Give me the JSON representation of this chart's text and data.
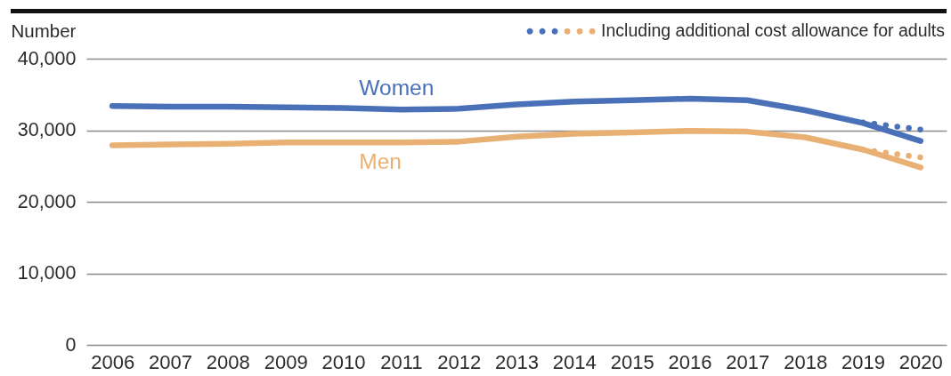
{
  "chart_data": {
    "type": "line",
    "ylabel": "Number",
    "categories": [
      "2006",
      "2007",
      "2008",
      "2009",
      "2010",
      "2011",
      "2012",
      "2013",
      "2014",
      "2015",
      "2016",
      "2017",
      "2018",
      "2019",
      "2020"
    ],
    "series": [
      {
        "name": "Women",
        "color": "#4a70b8",
        "line_style": "solid",
        "values": [
          33400,
          33300,
          33300,
          33200,
          33100,
          32900,
          33000,
          33600,
          34000,
          34200,
          34400,
          34200,
          32800,
          31000,
          28500
        ]
      },
      {
        "name": "Men",
        "color": "#e9b074",
        "line_style": "solid",
        "values": [
          27900,
          28000,
          28100,
          28300,
          28300,
          28300,
          28400,
          29100,
          29500,
          29700,
          29900,
          29800,
          29000,
          27300,
          24800
        ]
      },
      {
        "color": "#4a70b8",
        "line_style": "dotted",
        "values": [
          null,
          null,
          null,
          null,
          null,
          null,
          null,
          null,
          null,
          null,
          null,
          null,
          null,
          31100,
          30100
        ]
      },
      {
        "name": "Including additional cost allowance for adults",
        "color": "#e9b074",
        "line_style": "dotted",
        "values": [
          null,
          null,
          null,
          null,
          null,
          null,
          null,
          null,
          null,
          null,
          null,
          null,
          null,
          27300,
          26200
        ]
      }
    ],
    "ylim": [
      0,
      40000
    ],
    "yticks": [
      0,
      {
        "value": 10000,
        "label": "10,000"
      },
      {
        "value": 20000,
        "label": "20,000"
      },
      {
        "value": 30000,
        "label": "30,000"
      },
      {
        "value": 40000,
        "label": "40,000"
      }
    ],
    "grid": "y",
    "legend": "top right"
  }
}
